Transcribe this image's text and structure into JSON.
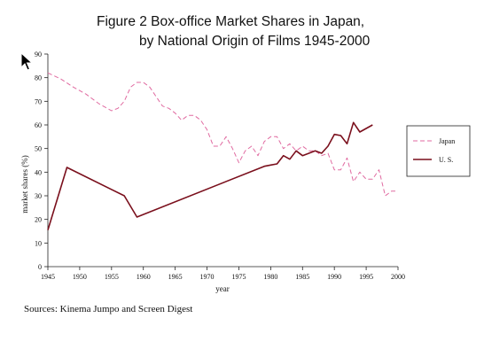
{
  "chart_data": {
    "type": "line",
    "title_line1": "Figure 2   Box-office Market Shares in Japan,",
    "title_line2": "by National Origin of Films 1945-2000",
    "xlabel": "year",
    "ylabel": "market shares (%)",
    "xlim": [
      1945,
      2000
    ],
    "ylim": [
      0,
      90
    ],
    "x_ticks": [
      "1945",
      "1950",
      "1955",
      "1960",
      "1965",
      "1970",
      "1975",
      "1980",
      "1985",
      "1990",
      "1995",
      "2000"
    ],
    "y_ticks": [
      "0",
      "10",
      "20",
      "30",
      "40",
      "50",
      "60",
      "70",
      "80",
      "90"
    ],
    "legend_position": "right",
    "series": [
      {
        "name": "Japan",
        "color": "#e06aa0",
        "style": "dashed",
        "x": [
          1945,
          1947,
          1949,
          1951,
          1953,
          1955,
          1956,
          1957,
          1958,
          1959,
          1960,
          1961,
          1962,
          1963,
          1964,
          1965,
          1966,
          1967,
          1968,
          1969,
          1970,
          1971,
          1972,
          1973,
          1974,
          1975,
          1976,
          1977,
          1978,
          1979,
          1980,
          1981,
          1982,
          1983,
          1984,
          1985,
          1986,
          1987,
          1988,
          1989,
          1990,
          1991,
          1992,
          1993,
          1994,
          1995,
          1996,
          1997,
          1998,
          1999,
          2000
        ],
        "y": [
          82,
          79.5,
          76,
          73,
          69,
          66,
          67,
          70,
          76,
          78,
          78,
          76,
          72,
          68,
          67,
          65,
          62,
          64,
          64,
          62,
          58,
          51,
          51,
          55,
          50,
          44,
          49,
          51,
          47,
          53,
          55,
          55,
          50,
          52,
          49,
          51,
          49,
          49,
          47,
          48,
          41,
          41,
          46,
          36,
          40,
          37,
          37,
          41,
          30,
          32,
          32
        ]
      },
      {
        "name": "U. S.",
        "color": "#7a0f1c",
        "style": "solid",
        "x": [
          1945,
          1948,
          1957,
          1959,
          1979,
          1980,
          1981,
          1982,
          1983,
          1984,
          1985,
          1986,
          1987,
          1988,
          1989,
          1990,
          1991,
          1992,
          1993,
          1994,
          1996
        ],
        "y": [
          15.5,
          42,
          30,
          21,
          42.5,
          43,
          43.5,
          47,
          45.5,
          49,
          47,
          48,
          49,
          48,
          51,
          56,
          55.5,
          52,
          61,
          57,
          60
        ]
      }
    ]
  },
  "source_text": "Sources: Kinema Jumpo and Screen Digest"
}
